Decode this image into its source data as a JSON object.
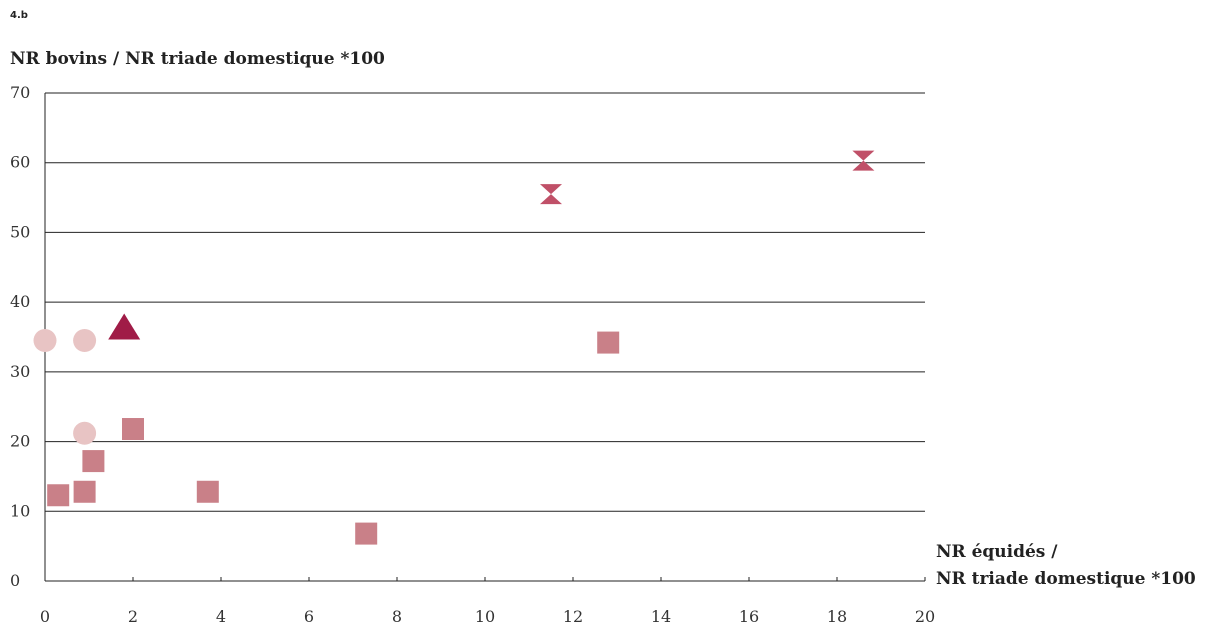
{
  "figure_label": "4.b",
  "colors": {
    "circle": "#e8c4c4",
    "square": "#c98088",
    "triangle": "#a01c47",
    "hourglass": "#c05068",
    "grid": "#222222"
  },
  "chart_data": {
    "type": "scatter",
    "title": "",
    "ylabel": "NR bovins / NR triade domestique *100",
    "xlabel_lines": [
      "NR équidés /",
      "NR triade domestique *100"
    ],
    "xlim": [
      0,
      20
    ],
    "ylim": [
      0,
      70
    ],
    "x_ticks": [
      "0",
      "2",
      "4",
      "6",
      "8",
      "10",
      "12",
      "14",
      "16",
      "18",
      "20"
    ],
    "y_ticks": [
      "0",
      "10",
      "20",
      "30",
      "40",
      "50",
      "60",
      "70"
    ],
    "y_tick_values": [
      0,
      10,
      20,
      30,
      40,
      50,
      60,
      70
    ],
    "grid": "horizontal",
    "series": [
      {
        "marker": "circle",
        "color": "#e8c4c4",
        "points": [
          [
            0,
            34.5
          ],
          [
            0.9,
            34.5
          ],
          [
            0.9,
            21.2
          ]
        ]
      },
      {
        "marker": "square",
        "color": "#c98088",
        "points": [
          [
            0.3,
            12.3
          ],
          [
            0.9,
            12.8
          ],
          [
            1.1,
            17.2
          ],
          [
            2.0,
            21.8
          ],
          [
            3.7,
            12.8
          ],
          [
            7.3,
            6.8
          ],
          [
            12.8,
            34.2
          ]
        ]
      },
      {
        "marker": "triangle",
        "color": "#a01c47",
        "points": [
          [
            1.8,
            36.5
          ]
        ]
      },
      {
        "marker": "hourglass",
        "color": "#c05068",
        "points": [
          [
            11.5,
            55.5
          ],
          [
            18.6,
            60.3
          ]
        ]
      }
    ]
  }
}
